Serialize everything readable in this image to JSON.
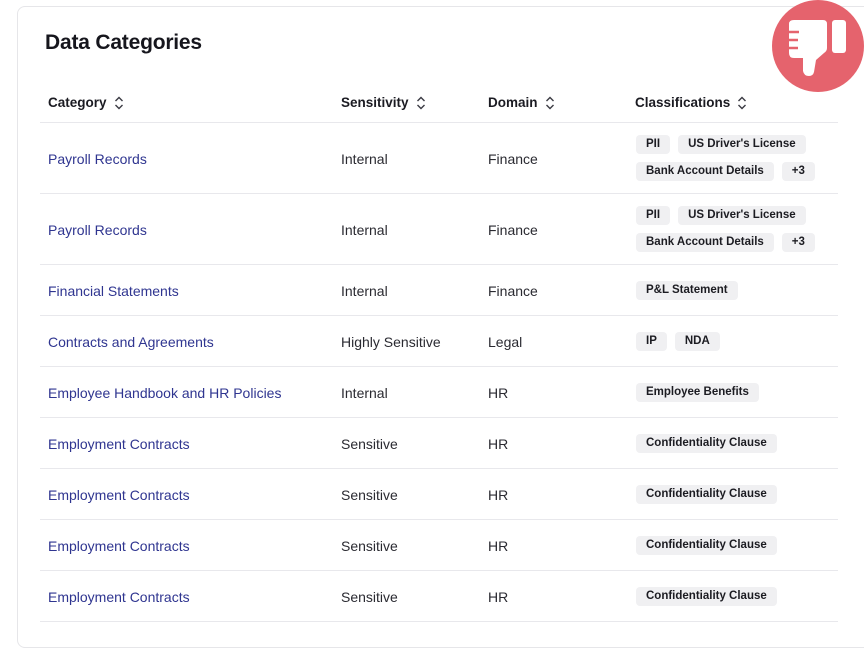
{
  "title": "Data Categories",
  "columns": [
    "Category",
    "Sensitivity",
    "Domain",
    "Classifications"
  ],
  "rows": [
    {
      "category": "Payroll Records",
      "sensitivity": "Internal",
      "domain": "Finance",
      "tags": [
        "PII",
        "US Driver's License",
        "Bank Account Details",
        "+3"
      ]
    },
    {
      "category": "Payroll Records",
      "sensitivity": "Internal",
      "domain": "Finance",
      "tags": [
        "PII",
        "US Driver's License",
        "Bank Account Details",
        "+3"
      ]
    },
    {
      "category": "Financial Statements",
      "sensitivity": "Internal",
      "domain": "Finance",
      "tags": [
        "P&L Statement"
      ]
    },
    {
      "category": "Contracts and Agreements",
      "sensitivity": "Highly Sensitive",
      "domain": "Legal",
      "tags": [
        "IP",
        "NDA"
      ]
    },
    {
      "category": "Employee Handbook and HR Policies",
      "sensitivity": "Internal",
      "domain": "HR",
      "tags": [
        "Employee Benefits"
      ]
    },
    {
      "category": "Employment Contracts",
      "sensitivity": "Sensitive",
      "domain": "HR",
      "tags": [
        "Confidentiality Clause"
      ]
    },
    {
      "category": "Employment Contracts",
      "sensitivity": "Sensitive",
      "domain": "HR",
      "tags": [
        "Confidentiality Clause"
      ]
    },
    {
      "category": "Employment Contracts",
      "sensitivity": "Sensitive",
      "domain": "HR",
      "tags": [
        "Confidentiality Clause"
      ]
    },
    {
      "category": "Employment Contracts",
      "sensitivity": "Sensitive",
      "domain": "HR",
      "tags": [
        "Confidentiality Clause"
      ]
    }
  ],
  "icons": {
    "sort": "sort-updown-icon",
    "feedback": "thumbs-down-icon"
  },
  "colors": {
    "link": "#2f3590",
    "feedback_bg": "#e5636d",
    "tag_bg": "#f0f0f2"
  }
}
